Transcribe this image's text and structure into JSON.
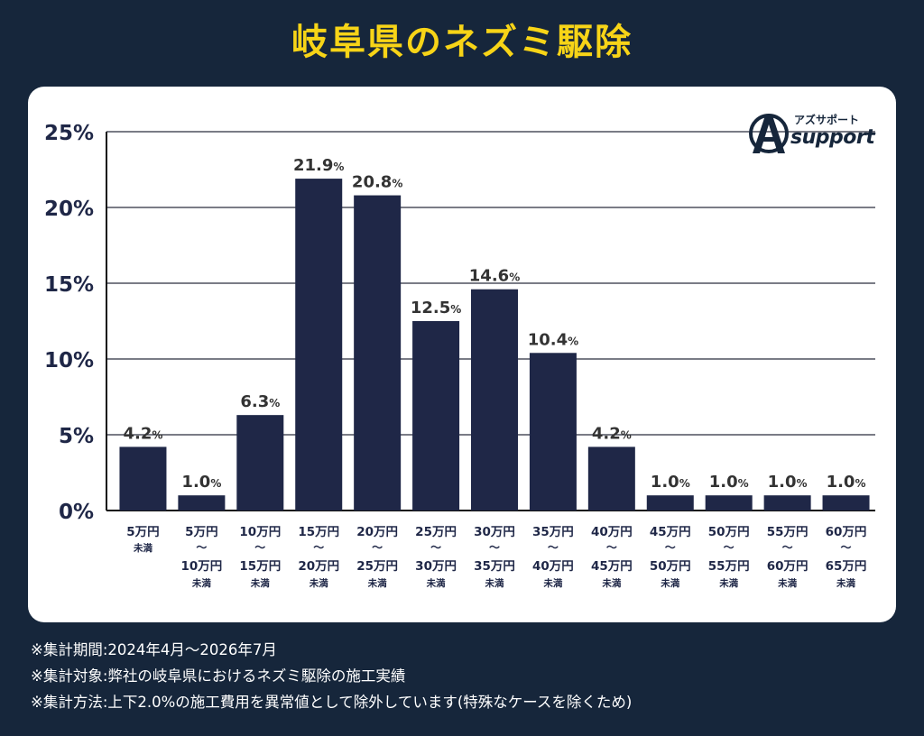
{
  "header": {
    "title": "岐阜県のネズミ駆除"
  },
  "logo": {
    "kana": "アズサポート",
    "word": "support",
    "mark": "AZ"
  },
  "chart_data": {
    "type": "bar",
    "title": "",
    "xlabel": "",
    "ylabel": "",
    "ylim": [
      0,
      25
    ],
    "y_ticks": [
      "0%",
      "5%",
      "10%",
      "15%",
      "20%",
      "25%"
    ],
    "grid": true,
    "categories": [
      {
        "top": "5万円",
        "mid": "",
        "bottom": "未満",
        "sub": ""
      },
      {
        "top": "5万円",
        "mid": "〜",
        "bottom": "10万円",
        "sub": "未満"
      },
      {
        "top": "10万円",
        "mid": "〜",
        "bottom": "15万円",
        "sub": "未満"
      },
      {
        "top": "15万円",
        "mid": "〜",
        "bottom": "20万円",
        "sub": "未満"
      },
      {
        "top": "20万円",
        "mid": "〜",
        "bottom": "25万円",
        "sub": "未満"
      },
      {
        "top": "25万円",
        "mid": "〜",
        "bottom": "30万円",
        "sub": "未満"
      },
      {
        "top": "30万円",
        "mid": "〜",
        "bottom": "35万円",
        "sub": "未満"
      },
      {
        "top": "35万円",
        "mid": "〜",
        "bottom": "40万円",
        "sub": "未満"
      },
      {
        "top": "40万円",
        "mid": "〜",
        "bottom": "45万円",
        "sub": "未満"
      },
      {
        "top": "45万円",
        "mid": "〜",
        "bottom": "50万円",
        "sub": "未満"
      },
      {
        "top": "50万円",
        "mid": "〜",
        "bottom": "55万円",
        "sub": "未満"
      },
      {
        "top": "55万円",
        "mid": "〜",
        "bottom": "60万円",
        "sub": "未満"
      },
      {
        "top": "60万円",
        "mid": "〜",
        "bottom": "65万円",
        "sub": "未満"
      }
    ],
    "values": [
      4.2,
      1.0,
      6.3,
      21.9,
      20.8,
      12.5,
      14.6,
      10.4,
      4.2,
      1.0,
      1.0,
      1.0,
      1.0
    ],
    "value_labels": [
      "4.2",
      "1.0",
      "6.3",
      "21.9",
      "20.8",
      "12.5",
      "14.6",
      "10.4",
      "4.2",
      "1.0",
      "1.0",
      "1.0",
      "1.0"
    ],
    "value_unit": "%",
    "bar_color": "#1f2747"
  },
  "notes": [
    "※集計期間:2024年4月〜2026年7月",
    "※集計対象:弊社の岐阜県におけるネズミ駆除の施工実績",
    "※集計方法:上下2.0%の施工費用を異常値として除外しています(特殊なケースを除くため)"
  ]
}
